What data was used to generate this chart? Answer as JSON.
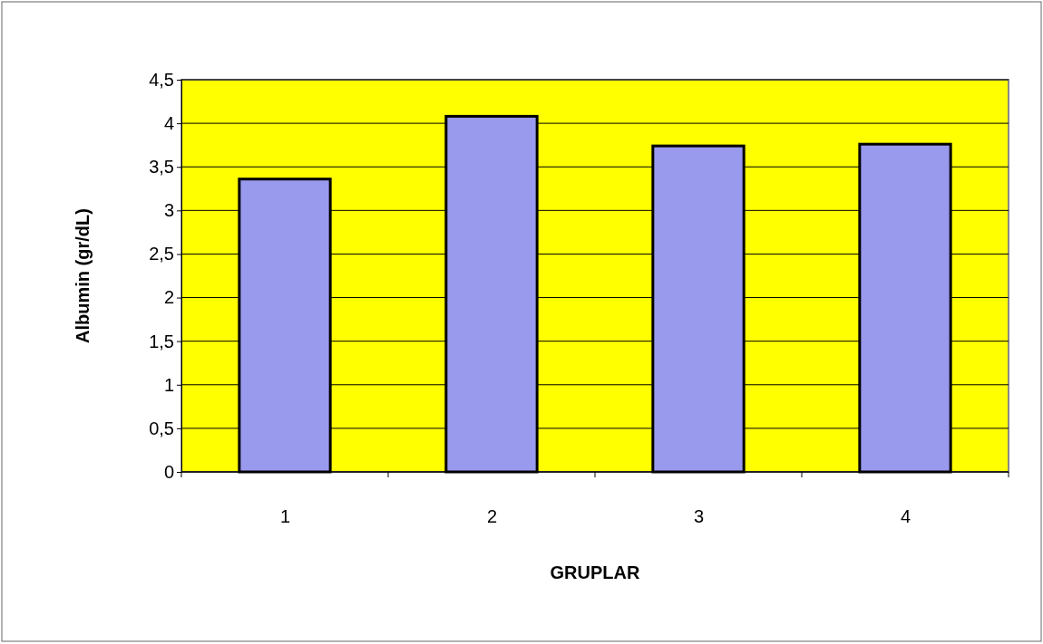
{
  "chart_data": {
    "type": "bar",
    "xlabel": "GRUPLAR",
    "ylabel": "Albumin (gr/dL)",
    "categories": [
      "1",
      "2",
      "3",
      "4"
    ],
    "values": [
      3.36,
      4.08,
      3.74,
      3.76
    ],
    "color": "#9999ee",
    "ylim": [
      0,
      4.5
    ],
    "yticks": [
      {
        "value": 0,
        "label": "0"
      },
      {
        "value": 0.5,
        "label": "0,5"
      },
      {
        "value": 1,
        "label": "1"
      },
      {
        "value": 1.5,
        "label": "1,5"
      },
      {
        "value": 2,
        "label": "2"
      },
      {
        "value": 2.5,
        "label": "2,5"
      },
      {
        "value": 3,
        "label": "3"
      },
      {
        "value": 3.5,
        "label": "3,5"
      },
      {
        "value": 4,
        "label": "4"
      },
      {
        "value": 4.5,
        "label": "4,5"
      }
    ],
    "grid": "y"
  }
}
